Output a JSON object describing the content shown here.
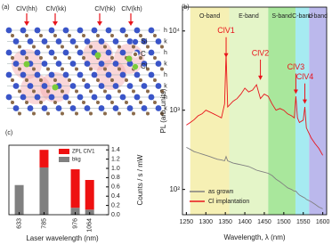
{
  "diagram": {
    "panel_label": "(a)",
    "defect_labels": [
      "ClV(hh)",
      "ClV(kk)",
      "ClV(hk)",
      "ClV(kh)"
    ],
    "legend": [
      "Si",
      "C",
      "Cl"
    ],
    "stacking": [
      "h",
      "k",
      "h",
      "k",
      "h",
      "k",
      "h",
      "k"
    ]
  },
  "chart_data": [
    {
      "type": "line",
      "panel_label": "(b)",
      "y_label": "PL (arb. units)",
      "x_label": "Wavelength, λ (nm)",
      "log_y": true,
      "xlim": [
        1240,
        1610
      ],
      "ylim": [
        48,
        20000
      ],
      "xticks": [
        1250,
        1300,
        1350,
        1400,
        1450,
        1500,
        1550,
        1600
      ],
      "yticks": [
        {
          "value": 100,
          "label": "10²"
        },
        {
          "value": 1000,
          "label": "10³"
        },
        {
          "value": 10000,
          "label": "10⁴"
        }
      ],
      "bands": [
        {
          "name": "O-band",
          "range": [
            1260,
            1360
          ],
          "color": "#f6f0b4"
        },
        {
          "name": "E-band",
          "range": [
            1360,
            1460
          ],
          "color": "#e4f5c8"
        },
        {
          "name": "S-band",
          "range": [
            1460,
            1530
          ],
          "color": "#a9e79c"
        },
        {
          "name": "C-band",
          "range": [
            1530,
            1565
          ],
          "color": "#a6ebf1"
        },
        {
          "name": "L-band",
          "range": [
            1565,
            1625
          ],
          "color": "#bbb8ec"
        }
      ],
      "annotations": [
        {
          "text": "ClV1",
          "x": 1352,
          "y": 4600
        },
        {
          "text": "ClV2",
          "x": 1440,
          "y": 2400
        },
        {
          "text": "ClV3",
          "x": 1531,
          "y": 1600
        },
        {
          "text": "ClV4",
          "x": 1554,
          "y": 1200
        }
      ],
      "legend_position": "lower left",
      "x": [
        1250,
        1260,
        1270,
        1280,
        1290,
        1300,
        1310,
        1320,
        1330,
        1340,
        1348,
        1352,
        1356,
        1370,
        1380,
        1390,
        1400,
        1410,
        1420,
        1430,
        1440,
        1450,
        1460,
        1470,
        1480,
        1490,
        1500,
        1510,
        1520,
        1527,
        1531,
        1535,
        1540,
        1550,
        1554,
        1558,
        1570,
        1580,
        1590,
        1600
      ],
      "series": [
        {
          "name": "as grown",
          "color": "#808080",
          "values": [
            340,
            320,
            300,
            290,
            280,
            270,
            260,
            250,
            240,
            235,
            230,
            260,
            230,
            215,
            210,
            205,
            200,
            195,
            185,
            175,
            170,
            165,
            160,
            150,
            135,
            125,
            115,
            105,
            100,
            95,
            95,
            90,
            85,
            80,
            78,
            75,
            70,
            65,
            60,
            57
          ]
        },
        {
          "name": "Cl implantation",
          "color": "#e8141c",
          "values": [
            650,
            700,
            760,
            850,
            900,
            1000,
            950,
            900,
            850,
            800,
            1200,
            5200,
            1100,
            1300,
            1400,
            1600,
            1900,
            1700,
            1800,
            2100,
            1400,
            1600,
            1500,
            1200,
            1000,
            1050,
            1000,
            900,
            850,
            800,
            1500,
            800,
            700,
            750,
            1100,
            600,
            450,
            380,
            330,
            270
          ]
        }
      ]
    },
    {
      "type": "stacked_bar",
      "panel_label": "(c)",
      "y_label": "Counts / s / mW",
      "x_label": "Laser wavelength (nm)",
      "xlim": [
        570,
        1180
      ],
      "ylim": [
        0,
        1.5
      ],
      "xticks": [
        633,
        785,
        976,
        1064
      ],
      "yticks": [
        {
          "value": 0,
          "label": "0.0"
        },
        0.2,
        0.4,
        0.6,
        0.8,
        {
          "value": 1,
          "label": "1.0"
        },
        1.2,
        1.4
      ],
      "x": [
        633,
        785,
        976,
        1064
      ],
      "series": [
        {
          "name": "bkg",
          "color": "#808080",
          "values": [
            0.64,
            1.02,
            0.15,
            0.11
          ]
        },
        {
          "name": "ZPL ClV1",
          "color": "#ee1111",
          "values": [
            0,
            0.38,
            0.83,
            0.64
          ]
        }
      ]
    }
  ]
}
